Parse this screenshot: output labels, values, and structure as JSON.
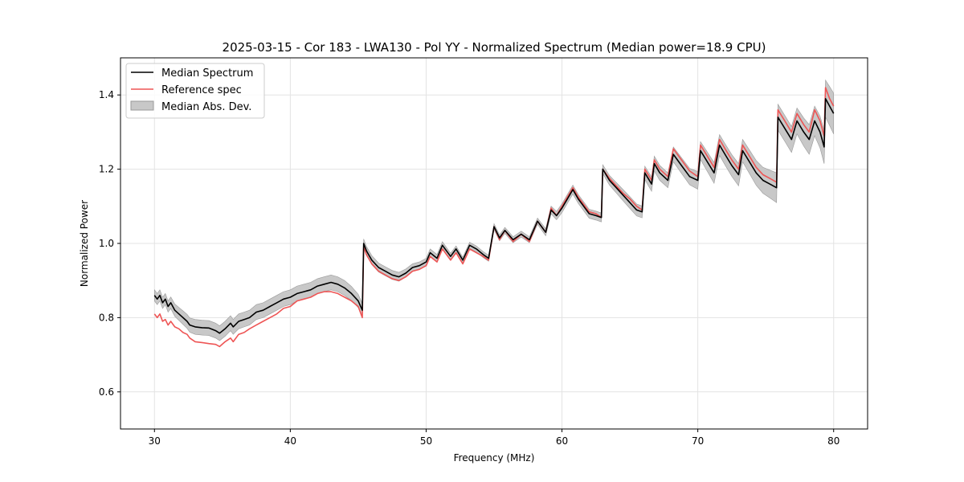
{
  "chart_data": {
    "type": "line",
    "title": "2025-03-15 - Cor 183 - LWA130 - Pol YY - Normalized Spectrum (Median power=18.9 CPU)",
    "xlabel": "Frequency (MHz)",
    "ylabel": "Normalized Power",
    "xlim": [
      27.5,
      82.5
    ],
    "ylim": [
      0.5,
      1.5
    ],
    "xticks": [
      30,
      40,
      50,
      60,
      70,
      80
    ],
    "yticks": [
      0.6,
      0.8,
      1.0,
      1.2,
      1.4
    ],
    "xtick_labels": [
      "30",
      "40",
      "50",
      "60",
      "70",
      "80"
    ],
    "ytick_labels": [
      "0.6",
      "0.8",
      "1.0",
      "1.2",
      "1.4"
    ],
    "grid": true,
    "legend_position": "top-left",
    "legend": [
      "Median Spectrum",
      "Reference spec",
      "Median Abs. Dev."
    ],
    "colors": {
      "median": "#000000",
      "reference": "#ee5555",
      "band": "#c8c8c8",
      "band_edge": "#9a9a9a",
      "grid": "#e3e3e3"
    },
    "series": [
      {
        "name": "Median Spectrum",
        "x": [
          30.0,
          30.2,
          30.4,
          30.6,
          30.8,
          31.0,
          31.2,
          31.5,
          31.8,
          32.1,
          32.4,
          32.6,
          33.0,
          33.5,
          34.0,
          34.5,
          34.8,
          35.2,
          35.6,
          35.8,
          36.2,
          36.6,
          37.0,
          37.5,
          38.0,
          38.5,
          39.0,
          39.5,
          40.0,
          40.5,
          41.0,
          41.5,
          42.0,
          42.5,
          43.0,
          43.5,
          44.0,
          44.5,
          45.0,
          45.3,
          45.4,
          45.6,
          46.0,
          46.5,
          47.0,
          47.5,
          48.0,
          48.5,
          49.0,
          49.5,
          50.0,
          50.3,
          50.8,
          51.2,
          51.8,
          52.2,
          52.7,
          53.2,
          53.7,
          54.2,
          54.6,
          55.0,
          55.4,
          55.8,
          56.4,
          57.0,
          57.6,
          58.2,
          58.8,
          59.2,
          59.6,
          60.0,
          60.4,
          60.8,
          61.2,
          61.6,
          62.0,
          62.5,
          62.9,
          63.0,
          63.5,
          64.0,
          64.5,
          65.0,
          65.5,
          65.9,
          66.1,
          66.6,
          66.8,
          67.2,
          67.8,
          68.2,
          68.8,
          69.4,
          70.0,
          70.2,
          70.7,
          71.2,
          71.6,
          72.0,
          72.5,
          73.0,
          73.3,
          73.8,
          74.3,
          74.8,
          75.3,
          75.8,
          75.9,
          76.4,
          76.9,
          77.3,
          77.8,
          78.2,
          78.6,
          79.0,
          79.3,
          79.4,
          79.7,
          80.0
        ],
        "values": [
          0.86,
          0.85,
          0.86,
          0.84,
          0.85,
          0.83,
          0.84,
          0.82,
          0.81,
          0.8,
          0.79,
          0.78,
          0.775,
          0.773,
          0.772,
          0.765,
          0.758,
          0.77,
          0.785,
          0.775,
          0.79,
          0.795,
          0.8,
          0.815,
          0.82,
          0.83,
          0.84,
          0.85,
          0.855,
          0.865,
          0.87,
          0.875,
          0.885,
          0.89,
          0.895,
          0.89,
          0.88,
          0.865,
          0.845,
          0.82,
          1.0,
          0.98,
          0.955,
          0.935,
          0.925,
          0.915,
          0.91,
          0.92,
          0.935,
          0.94,
          0.95,
          0.975,
          0.96,
          0.995,
          0.965,
          0.985,
          0.955,
          0.995,
          0.985,
          0.97,
          0.96,
          1.045,
          1.015,
          1.035,
          1.01,
          1.025,
          1.01,
          1.06,
          1.03,
          1.09,
          1.075,
          1.095,
          1.12,
          1.145,
          1.12,
          1.1,
          1.08,
          1.075,
          1.07,
          1.2,
          1.17,
          1.15,
          1.13,
          1.11,
          1.09,
          1.085,
          1.19,
          1.16,
          1.215,
          1.19,
          1.17,
          1.24,
          1.21,
          1.18,
          1.17,
          1.25,
          1.22,
          1.19,
          1.265,
          1.24,
          1.21,
          1.185,
          1.25,
          1.22,
          1.19,
          1.17,
          1.16,
          1.15,
          1.34,
          1.31,
          1.28,
          1.33,
          1.3,
          1.28,
          1.33,
          1.3,
          1.26,
          1.39,
          1.37,
          1.35
        ]
      },
      {
        "name": "Reference spec",
        "x": [
          30.0,
          30.2,
          30.4,
          30.6,
          30.8,
          31.0,
          31.2,
          31.5,
          31.8,
          32.1,
          32.4,
          32.6,
          33.0,
          33.5,
          34.0,
          34.5,
          34.8,
          35.2,
          35.6,
          35.8,
          36.2,
          36.6,
          37.0,
          37.5,
          38.0,
          38.5,
          39.0,
          39.5,
          40.0,
          40.5,
          41.0,
          41.5,
          42.0,
          42.5,
          43.0,
          43.5,
          44.0,
          44.5,
          45.0,
          45.3,
          45.4,
          45.6,
          46.0,
          46.5,
          47.0,
          47.5,
          48.0,
          48.5,
          49.0,
          49.5,
          50.0,
          50.3,
          50.8,
          51.2,
          51.8,
          52.2,
          52.7,
          53.2,
          53.7,
          54.2,
          54.6,
          55.0,
          55.4,
          55.8,
          56.4,
          57.0,
          57.6,
          58.2,
          58.8,
          59.2,
          59.6,
          60.0,
          60.4,
          60.8,
          61.2,
          61.6,
          62.0,
          62.5,
          62.9,
          63.0,
          63.5,
          64.0,
          64.5,
          65.0,
          65.5,
          65.9,
          66.1,
          66.6,
          66.8,
          67.2,
          67.8,
          68.2,
          68.8,
          69.4,
          70.0,
          70.2,
          70.7,
          71.2,
          71.6,
          72.0,
          72.5,
          73.0,
          73.3,
          73.8,
          74.3,
          74.8,
          75.3,
          75.8,
          75.9,
          76.4,
          76.9,
          77.3,
          77.8,
          78.2,
          78.6,
          79.0,
          79.3,
          79.4,
          79.7,
          80.0
        ],
        "values": [
          0.81,
          0.8,
          0.81,
          0.79,
          0.795,
          0.78,
          0.79,
          0.775,
          0.77,
          0.76,
          0.755,
          0.745,
          0.735,
          0.733,
          0.73,
          0.728,
          0.722,
          0.735,
          0.745,
          0.735,
          0.755,
          0.76,
          0.77,
          0.78,
          0.79,
          0.8,
          0.81,
          0.825,
          0.83,
          0.845,
          0.85,
          0.855,
          0.865,
          0.87,
          0.87,
          0.865,
          0.855,
          0.845,
          0.83,
          0.8,
          0.99,
          0.97,
          0.945,
          0.925,
          0.915,
          0.905,
          0.9,
          0.91,
          0.925,
          0.93,
          0.94,
          0.965,
          0.95,
          0.985,
          0.955,
          0.975,
          0.945,
          0.985,
          0.975,
          0.965,
          0.955,
          1.045,
          1.01,
          1.035,
          1.005,
          1.025,
          1.005,
          1.06,
          1.03,
          1.095,
          1.075,
          1.1,
          1.125,
          1.15,
          1.125,
          1.105,
          1.085,
          1.08,
          1.07,
          1.2,
          1.175,
          1.155,
          1.135,
          1.12,
          1.1,
          1.09,
          1.2,
          1.17,
          1.225,
          1.2,
          1.18,
          1.255,
          1.225,
          1.195,
          1.18,
          1.265,
          1.235,
          1.205,
          1.28,
          1.255,
          1.225,
          1.2,
          1.265,
          1.235,
          1.205,
          1.185,
          1.175,
          1.165,
          1.36,
          1.33,
          1.3,
          1.35,
          1.32,
          1.3,
          1.36,
          1.33,
          1.29,
          1.42,
          1.39,
          1.37
        ]
      }
    ],
    "band": {
      "name": "Median Abs. Dev.",
      "x": [
        30.0,
        31.0,
        32.0,
        33.0,
        34.0,
        35.0,
        36.0,
        37.0,
        38.0,
        39.0,
        40.0,
        41.0,
        42.0,
        43.0,
        44.0,
        45.0,
        45.3,
        45.4,
        46.0,
        47.0,
        48.0,
        49.0,
        50.0,
        51.0,
        52.0,
        53.0,
        54.0,
        55.0,
        56.0,
        57.0,
        58.0,
        59.0,
        60.0,
        61.0,
        62.0,
        62.9,
        63.0,
        64.0,
        65.0,
        65.9,
        66.1,
        66.8,
        67.8,
        68.2,
        69.4,
        70.0,
        70.2,
        71.2,
        71.6,
        73.0,
        73.3,
        74.8,
        75.8,
        75.9,
        76.9,
        77.3,
        78.2,
        78.6,
        79.3,
        79.4,
        80.0
      ],
      "half_width": [
        0.015,
        0.015,
        0.018,
        0.02,
        0.02,
        0.02,
        0.02,
        0.02,
        0.02,
        0.02,
        0.02,
        0.02,
        0.02,
        0.02,
        0.02,
        0.018,
        0.018,
        0.012,
        0.012,
        0.012,
        0.012,
        0.01,
        0.01,
        0.01,
        0.008,
        0.008,
        0.008,
        0.008,
        0.008,
        0.008,
        0.008,
        0.01,
        0.012,
        0.012,
        0.012,
        0.012,
        0.012,
        0.014,
        0.016,
        0.016,
        0.018,
        0.02,
        0.02,
        0.02,
        0.022,
        0.024,
        0.024,
        0.028,
        0.028,
        0.03,
        0.03,
        0.035,
        0.04,
        0.035,
        0.035,
        0.035,
        0.04,
        0.04,
        0.045,
        0.05,
        0.055
      ]
    }
  }
}
